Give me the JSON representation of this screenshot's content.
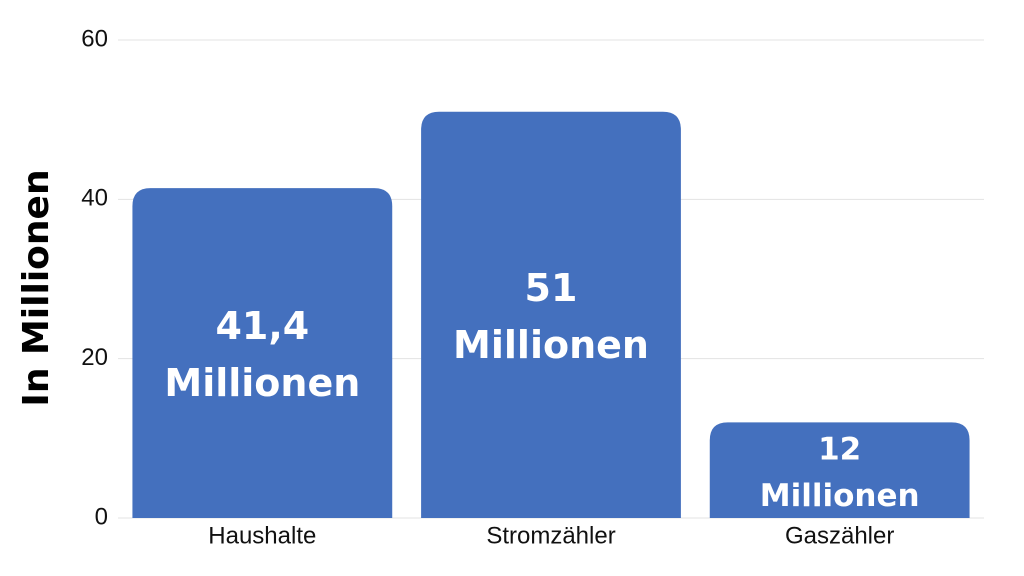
{
  "chart_data": {
    "type": "bar",
    "y_label": "In Millionen",
    "categories": [
      "Haushalte",
      "Stromzähler",
      "Gaszähler"
    ],
    "values": [
      41.4,
      51,
      12
    ],
    "value_labels": [
      [
        "41,4",
        "Millionen"
      ],
      [
        "51",
        "Millionen"
      ],
      [
        "12",
        "Millionen"
      ]
    ],
    "color": "#4470be",
    "ylim": [
      0,
      60
    ],
    "yticks": [
      0,
      20,
      40,
      60
    ],
    "grid": true
  }
}
